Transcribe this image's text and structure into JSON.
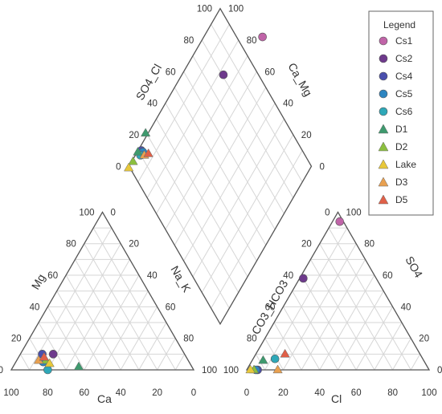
{
  "chart_data": {
    "type": "scatter",
    "title": "",
    "diagram": "piper",
    "axis_labels": {
      "ca": "Ca",
      "mg": "Mg",
      "nak": "Na_K",
      "cl": "Cl",
      "so4": "SO4",
      "co3hco3": "CO3_HCO3",
      "so4cl": "SO4_Cl",
      "camg": "Ca_Mg"
    },
    "tick_labels": [
      "0",
      "20",
      "40",
      "60",
      "80",
      "100"
    ],
    "legend": {
      "title": "Legend",
      "position": "top-right",
      "items": [
        {
          "name": "Cs1",
          "marker": "circle",
          "color": "#c064a8"
        },
        {
          "name": "Cs2",
          "marker": "circle",
          "color": "#6e3a8c"
        },
        {
          "name": "Cs4",
          "marker": "circle",
          "color": "#4a4fad"
        },
        {
          "name": "Cs5",
          "marker": "circle",
          "color": "#2e86c1"
        },
        {
          "name": "Cs6",
          "marker": "circle",
          "color": "#2ea8b8"
        },
        {
          "name": "D1",
          "marker": "triangle",
          "color": "#3e9a6e"
        },
        {
          "name": "D2",
          "marker": "triangle",
          "color": "#8cbf3f"
        },
        {
          "name": "Lake",
          "marker": "triangle",
          "color": "#e8c83a"
        },
        {
          "name": "D3",
          "marker": "triangle",
          "color": "#e8a050"
        },
        {
          "name": "D5",
          "marker": "triangle",
          "color": "#e06048"
        }
      ]
    },
    "cation_points": [
      {
        "series": "Cs2",
        "ca": 72,
        "mg": 10
      },
      {
        "series": "Cs4",
        "ca": 78,
        "mg": 10
      },
      {
        "series": "Cs5",
        "ca": 80,
        "mg": 5
      },
      {
        "series": "Cs6",
        "ca": 80,
        "mg": 0
      },
      {
        "series": "D1",
        "ca": 62,
        "mg": 2
      },
      {
        "series": "D2",
        "ca": 78,
        "mg": 6
      },
      {
        "series": "Lake",
        "ca": 77,
        "mg": 4
      },
      {
        "series": "D3",
        "ca": 82,
        "mg": 6
      },
      {
        "series": "D5",
        "ca": 78,
        "mg": 8
      }
    ],
    "anion_points": [
      {
        "series": "Cs1",
        "cl": 4,
        "so4": 94
      },
      {
        "series": "Cs2",
        "cl": 2,
        "so4": 58
      },
      {
        "series": "Cs4",
        "cl": 6,
        "so4": 0
      },
      {
        "series": "Cs5",
        "cl": 5,
        "so4": 0
      },
      {
        "series": "Cs6",
        "cl": 12,
        "so4": 7
      },
      {
        "series": "D1",
        "cl": 6,
        "so4": 6
      },
      {
        "series": "D2",
        "cl": 4,
        "so4": 0
      },
      {
        "series": "Lake",
        "cl": 2,
        "so4": 0
      },
      {
        "series": "D3",
        "cl": 17,
        "so4": 0
      },
      {
        "series": "D5",
        "cl": 16,
        "so4": 10
      }
    ],
    "diamond_points": [
      {
        "series": "Cs1",
        "camg": 92,
        "so4cl": 82
      },
      {
        "series": "Cs2",
        "camg": 65,
        "so4cl": 58
      },
      {
        "series": "Cs4",
        "camg": 5,
        "so4cl": 10
      },
      {
        "series": "Cs5",
        "camg": 9,
        "so4cl": 9
      },
      {
        "series": "Cs6",
        "camg": 8,
        "so4cl": 7
      },
      {
        "series": "D1",
        "camg": 1,
        "so4cl": 9
      },
      {
        "series": "D2",
        "camg": 2,
        "so4cl": 3
      },
      {
        "series": "Lake",
        "camg": 1,
        "so4cl": -1
      },
      {
        "series": "D3",
        "camg": 14,
        "so4cl": 7
      },
      {
        "series": "D5",
        "camg": 19,
        "so4cl": 8
      },
      {
        "series": "D1",
        "camg": -4,
        "so4cl": 21
      }
    ]
  }
}
